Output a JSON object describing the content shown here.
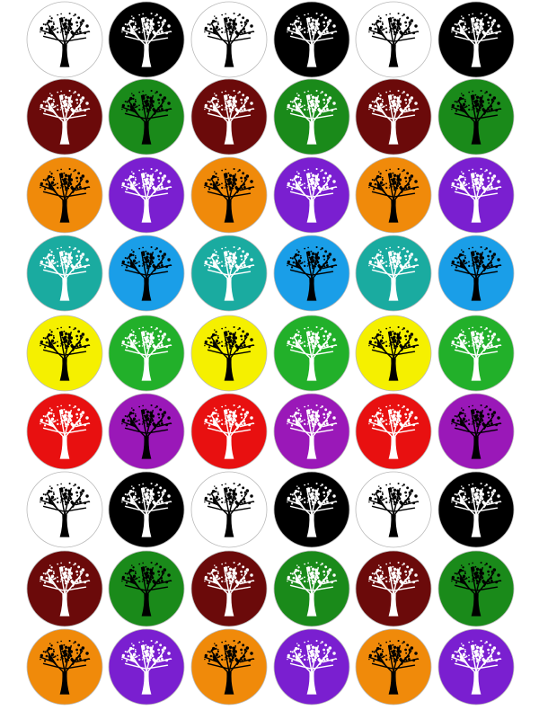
{
  "rows": [
    [
      {
        "bg": "#ffffff",
        "tree": "#000000"
      },
      {
        "bg": "#000000",
        "tree": "#ffffff"
      },
      {
        "bg": "#ffffff",
        "tree": "#000000"
      },
      {
        "bg": "#000000",
        "tree": "#ffffff"
      },
      {
        "bg": "#ffffff",
        "tree": "#000000"
      },
      {
        "bg": "#000000",
        "tree": "#ffffff"
      }
    ],
    [
      {
        "bg": "#6b0a0a",
        "tree": "#ffffff"
      },
      {
        "bg": "#1a8a1a",
        "tree": "#000000"
      },
      {
        "bg": "#6b0a0a",
        "tree": "#ffffff"
      },
      {
        "bg": "#1a8a1a",
        "tree": "#ffffff"
      },
      {
        "bg": "#6b0a0a",
        "tree": "#ffffff"
      },
      {
        "bg": "#1a8a1a",
        "tree": "#000000"
      }
    ],
    [
      {
        "bg": "#f08a0a",
        "tree": "#000000"
      },
      {
        "bg": "#7a1fd0",
        "tree": "#ffffff"
      },
      {
        "bg": "#f08a0a",
        "tree": "#000000"
      },
      {
        "bg": "#7a1fd0",
        "tree": "#ffffff"
      },
      {
        "bg": "#f08a0a",
        "tree": "#000000"
      },
      {
        "bg": "#7a1fd0",
        "tree": "#ffffff"
      }
    ],
    [
      {
        "bg": "#1aaba0",
        "tree": "#ffffff"
      },
      {
        "bg": "#1a9ee8",
        "tree": "#000000"
      },
      {
        "bg": "#1aaba0",
        "tree": "#ffffff"
      },
      {
        "bg": "#1a9ee8",
        "tree": "#000000"
      },
      {
        "bg": "#1aaba0",
        "tree": "#ffffff"
      },
      {
        "bg": "#1a9ee8",
        "tree": "#000000"
      }
    ],
    [
      {
        "bg": "#f5f000",
        "tree": "#000000"
      },
      {
        "bg": "#22b02a",
        "tree": "#ffffff"
      },
      {
        "bg": "#f5f000",
        "tree": "#000000"
      },
      {
        "bg": "#22b02a",
        "tree": "#ffffff"
      },
      {
        "bg": "#f5f000",
        "tree": "#000000"
      },
      {
        "bg": "#22b02a",
        "tree": "#ffffff"
      }
    ],
    [
      {
        "bg": "#e81010",
        "tree": "#ffffff"
      },
      {
        "bg": "#9a18b8",
        "tree": "#000000"
      },
      {
        "bg": "#e81010",
        "tree": "#ffffff"
      },
      {
        "bg": "#9a18b8",
        "tree": "#ffffff"
      },
      {
        "bg": "#e81010",
        "tree": "#ffffff"
      },
      {
        "bg": "#9a18b8",
        "tree": "#000000"
      }
    ],
    [
      {
        "bg": "#ffffff",
        "tree": "#000000"
      },
      {
        "bg": "#000000",
        "tree": "#ffffff"
      },
      {
        "bg": "#ffffff",
        "tree": "#000000"
      },
      {
        "bg": "#000000",
        "tree": "#ffffff"
      },
      {
        "bg": "#ffffff",
        "tree": "#000000"
      },
      {
        "bg": "#000000",
        "tree": "#ffffff"
      }
    ],
    [
      {
        "bg": "#6b0a0a",
        "tree": "#ffffff"
      },
      {
        "bg": "#1a8a1a",
        "tree": "#000000"
      },
      {
        "bg": "#6b0a0a",
        "tree": "#ffffff"
      },
      {
        "bg": "#1a8a1a",
        "tree": "#ffffff"
      },
      {
        "bg": "#6b0a0a",
        "tree": "#ffffff"
      },
      {
        "bg": "#1a8a1a",
        "tree": "#000000"
      }
    ],
    [
      {
        "bg": "#f08a0a",
        "tree": "#000000"
      },
      {
        "bg": "#7a1fd0",
        "tree": "#ffffff"
      },
      {
        "bg": "#f08a0a",
        "tree": "#000000"
      },
      {
        "bg": "#7a1fd0",
        "tree": "#ffffff"
      },
      {
        "bg": "#f08a0a",
        "tree": "#000000"
      },
      {
        "bg": "#7a1fd0",
        "tree": "#ffffff"
      }
    ]
  ]
}
